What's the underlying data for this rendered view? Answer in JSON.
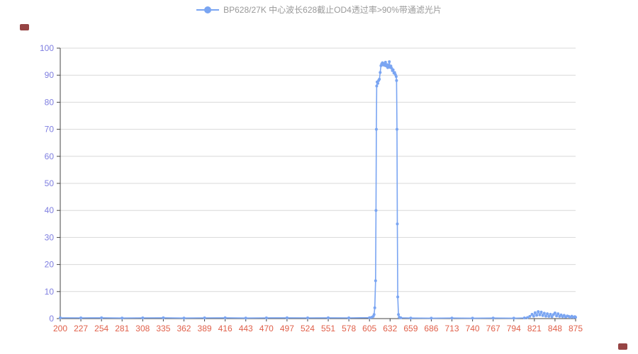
{
  "legend": {
    "label": "BP628/27K 中心波长628截止OD4透过率>90%带通滤光片"
  },
  "colors": {
    "series": "#7aa5f2",
    "series_marker": "#7aa5f2",
    "x_labels": "#e0604a",
    "y_labels": "#7e7ee0",
    "grid": "#d8d8d8",
    "axis": "#444444",
    "legend_text": "#999999",
    "corner_mark": "#8b3030",
    "background": "#ffffff"
  },
  "chart_data": {
    "type": "line",
    "title": "BP628/27K 中心波长628截止OD4透过率>90%带通滤光片",
    "series_name": "BP628/27K 中心波长628截止OD4透过率>90%带通滤光片",
    "xlabel": "",
    "ylabel": "",
    "xlim": [
      200,
      875
    ],
    "ylim": [
      0,
      100
    ],
    "x_ticks": [
      200,
      227,
      254,
      281,
      308,
      335,
      362,
      389,
      416,
      443,
      470,
      497,
      524,
      551,
      578,
      605,
      632,
      659,
      686,
      713,
      740,
      767,
      794,
      821,
      848,
      875
    ],
    "y_ticks": [
      0,
      10,
      20,
      30,
      40,
      50,
      60,
      70,
      80,
      90,
      100
    ],
    "grid": "horizontal",
    "legend_position": "top-center",
    "points": [
      [
        200,
        0.3
      ],
      [
        227,
        0.25
      ],
      [
        254,
        0.3
      ],
      [
        281,
        0.2
      ],
      [
        308,
        0.25
      ],
      [
        335,
        0.3
      ],
      [
        362,
        0.2
      ],
      [
        389,
        0.25
      ],
      [
        416,
        0.3
      ],
      [
        443,
        0.2
      ],
      [
        470,
        0.25
      ],
      [
        497,
        0.3
      ],
      [
        524,
        0.25
      ],
      [
        551,
        0.3
      ],
      [
        578,
        0.25
      ],
      [
        605,
        0.35
      ],
      [
        608,
        0.5
      ],
      [
        610,
        0.8
      ],
      [
        611,
        1.5
      ],
      [
        612,
        4
      ],
      [
        613,
        14
      ],
      [
        613.5,
        40
      ],
      [
        614,
        70
      ],
      [
        614.5,
        86
      ],
      [
        615,
        87.5
      ],
      [
        616,
        87
      ],
      [
        617,
        88
      ],
      [
        618,
        88.5
      ],
      [
        619,
        91
      ],
      [
        620,
        93.5
      ],
      [
        621,
        94.2
      ],
      [
        622,
        94.6
      ],
      [
        623,
        93.8
      ],
      [
        624,
        94.3
      ],
      [
        625,
        93.6
      ],
      [
        626,
        94.8
      ],
      [
        627,
        93.4
      ],
      [
        628,
        93.9
      ],
      [
        629,
        92.8
      ],
      [
        630,
        93.3
      ],
      [
        631,
        95
      ],
      [
        632,
        92.9
      ],
      [
        633,
        93.4
      ],
      [
        634,
        92.6
      ],
      [
        635,
        91.7
      ],
      [
        636,
        92
      ],
      [
        637,
        90.8
      ],
      [
        638,
        91
      ],
      [
        639,
        90.2
      ],
      [
        640,
        89.5
      ],
      [
        640.5,
        88
      ],
      [
        641,
        70
      ],
      [
        641.5,
        35
      ],
      [
        642,
        8
      ],
      [
        643,
        1.5
      ],
      [
        644,
        0.5
      ],
      [
        646,
        0.3
      ],
      [
        659,
        0.2
      ],
      [
        686,
        0.15
      ],
      [
        713,
        0.2
      ],
      [
        740,
        0.15
      ],
      [
        767,
        0.2
      ],
      [
        794,
        0.15
      ],
      [
        808,
        0.25
      ],
      [
        812,
        0.4
      ],
      [
        815,
        0.8
      ],
      [
        818,
        1.6
      ],
      [
        820,
        0.9
      ],
      [
        822,
        2.2
      ],
      [
        824,
        1.2
      ],
      [
        826,
        2.6
      ],
      [
        828,
        1.4
      ],
      [
        830,
        2.4
      ],
      [
        832,
        1.1
      ],
      [
        834,
        2.0
      ],
      [
        836,
        0.9
      ],
      [
        838,
        1.8
      ],
      [
        840,
        0.8
      ],
      [
        842,
        1.6
      ],
      [
        844,
        0.7
      ],
      [
        846,
        1.5
      ],
      [
        848,
        2.1
      ],
      [
        850,
        1.0
      ],
      [
        852,
        1.8
      ],
      [
        854,
        0.8
      ],
      [
        856,
        1.4
      ],
      [
        858,
        0.7
      ],
      [
        860,
        1.2
      ],
      [
        862,
        0.6
      ],
      [
        864,
        1.0
      ],
      [
        866,
        0.8
      ],
      [
        868,
        0.5
      ],
      [
        870,
        0.9
      ],
      [
        872,
        0.5
      ],
      [
        874,
        0.7
      ],
      [
        875,
        0.5
      ]
    ]
  }
}
